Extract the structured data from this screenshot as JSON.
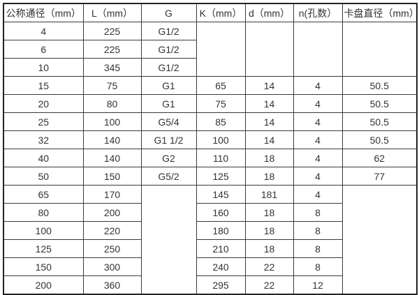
{
  "page": {
    "background": "#ffffff",
    "border_color": "#3a3a3a",
    "text_color": "#333333"
  },
  "table": {
    "headers": [
      "公称通径（mm）",
      "L（mm）",
      "G",
      "K（mm）",
      "d（mm）",
      "n(孔数）",
      "卡盘直径（mm）"
    ],
    "rows": [
      [
        "4",
        "225",
        "G1/2",
        "",
        "",
        "",
        ""
      ],
      [
        "6",
        "225",
        "G1/2",
        "",
        "",
        "",
        ""
      ],
      [
        "10",
        "345",
        "G1/2",
        "",
        "",
        "",
        ""
      ],
      [
        "15",
        "75",
        "G1",
        "65",
        "14",
        "4",
        "50.5"
      ],
      [
        "20",
        "80",
        "G1",
        "75",
        "14",
        "4",
        "50.5"
      ],
      [
        "25",
        "100",
        "G5/4",
        "85",
        "14",
        "4",
        "50.5"
      ],
      [
        "32",
        "140",
        "G1 1/2",
        "100",
        "14",
        "4",
        "50.5"
      ],
      [
        "40",
        "140",
        "G2",
        "110",
        "18",
        "4",
        "62"
      ],
      [
        "50",
        "150",
        "G5/2",
        "125",
        "18",
        "4",
        "77"
      ],
      [
        "65",
        "170",
        "",
        "145",
        "181",
        "4",
        ""
      ],
      [
        "80",
        "200",
        "",
        "160",
        "18",
        "8",
        ""
      ],
      [
        "100",
        "220",
        "",
        "180",
        "18",
        "8",
        ""
      ],
      [
        "125",
        "250",
        "",
        "210",
        "18",
        "8",
        ""
      ],
      [
        "150",
        "300",
        "",
        "240",
        "22",
        "8",
        ""
      ],
      [
        "200",
        "360",
        "",
        "295",
        "22",
        "12",
        ""
      ]
    ]
  }
}
